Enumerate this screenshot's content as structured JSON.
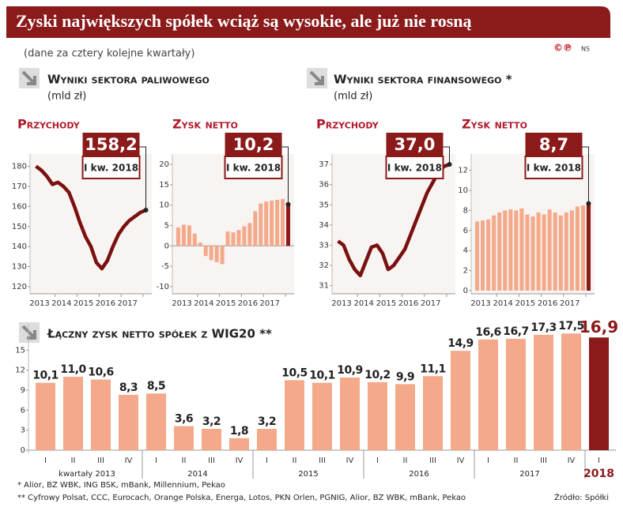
{
  "header": {
    "title": "Zyski największych spółek wciąż są wysokie, ale już nie rosną",
    "subtitle": "(dane za cztery kolejne kwartały)",
    "logo": "©℗",
    "author": "NS"
  },
  "sections": [
    {
      "title": "Wyniki sektora paliwowego",
      "unit": "(mld zł)"
    },
    {
      "title": "Wyniki sektora finansowego *",
      "unit": "(mld zł)"
    }
  ],
  "chart_data": [
    {
      "type": "line",
      "title": "Przychody",
      "color": "#7a1010",
      "categories": [
        "2013",
        null,
        null,
        null,
        "2014",
        null,
        null,
        null,
        "2015",
        null,
        null,
        null,
        "2016",
        null,
        null,
        null,
        "2017",
        null,
        null,
        null,
        null
      ],
      "values": [
        180,
        178,
        175,
        171,
        172,
        170,
        167,
        160,
        152,
        145,
        140,
        132,
        129,
        133,
        140,
        146,
        150,
        153,
        155,
        157,
        158.2
      ],
      "ylim": [
        118,
        183
      ],
      "yticks": [
        120,
        130,
        140,
        150,
        160,
        170,
        180
      ],
      "highlight": {
        "value": 158.2,
        "label": "158,2",
        "period": "I kw. 2018"
      }
    },
    {
      "type": "bar",
      "title": "Zysk netto",
      "color": "#f4a98a",
      "highlight_color": "#8b1a1a",
      "categories": [
        "2013",
        null,
        null,
        null,
        "2014",
        null,
        null,
        null,
        "2015",
        null,
        null,
        null,
        "2016",
        null,
        null,
        null,
        "2017",
        null,
        null,
        null,
        null
      ],
      "values": [
        4.5,
        5.2,
        5.0,
        3.0,
        0.8,
        -2.5,
        -3.5,
        -4.0,
        -4.5,
        3.5,
        3.3,
        3.9,
        4.8,
        5.6,
        8.5,
        10.4,
        10.9,
        11.1,
        11.3,
        11.5,
        10.2
      ],
      "ylim": [
        -11,
        21
      ],
      "yticks": [
        -10,
        -5,
        0,
        5,
        10,
        15,
        20
      ],
      "highlight": {
        "value": 10.2,
        "label": "10,2",
        "period": "I kw. 2018"
      }
    },
    {
      "type": "line",
      "title": "Przychody",
      "color": "#7a1010",
      "categories": [
        "2013",
        null,
        null,
        null,
        "2014",
        null,
        null,
        null,
        "2015",
        null,
        null,
        null,
        "2016",
        null,
        null,
        null,
        "2017",
        null,
        null,
        null,
        null
      ],
      "values": [
        33.2,
        33.0,
        32.3,
        31.8,
        31.5,
        32.2,
        32.9,
        33.0,
        32.6,
        31.8,
        32.0,
        32.4,
        32.8,
        33.5,
        34.2,
        34.9,
        35.6,
        36.1,
        36.6,
        36.9,
        37.0
      ],
      "ylim": [
        30.75,
        37.2
      ],
      "yticks": [
        31,
        32,
        33,
        34,
        35,
        36,
        37
      ],
      "highlight": {
        "value": 37.0,
        "label": "37,0",
        "period": "I kw. 2018"
      }
    },
    {
      "type": "bar",
      "title": "Zysk netto",
      "color": "#f4a98a",
      "highlight_color": "#8b1a1a",
      "categories": [
        "2013",
        null,
        null,
        null,
        "2014",
        null,
        null,
        null,
        "2015",
        null,
        null,
        null,
        "2016",
        null,
        null,
        null,
        "2017",
        null,
        null,
        null,
        null
      ],
      "values": [
        6.9,
        7.0,
        7.1,
        7.5,
        7.8,
        8.0,
        8.1,
        8.0,
        8.2,
        7.6,
        7.4,
        7.8,
        7.6,
        8.1,
        7.8,
        7.5,
        7.8,
        8.0,
        8.4,
        8.5,
        8.7
      ],
      "ylim": [
        0,
        13
      ],
      "yticks": [
        0,
        2,
        4,
        6,
        8,
        10,
        12
      ],
      "highlight": {
        "value": 8.7,
        "label": "8,7",
        "period": "I kw. 2018"
      }
    },
    {
      "type": "bar",
      "title": "Łączny zysk netto spółek z WIG20 **",
      "color": "#f4a98a",
      "highlight_color": "#8b1a1a",
      "categories": [
        "I",
        "II",
        "III",
        "IV",
        "I",
        "II",
        "III",
        "IV",
        "I",
        "II",
        "III",
        "IV",
        "I",
        "II",
        "III",
        "IV",
        "I",
        "II",
        "III",
        "IV",
        "I"
      ],
      "values": [
        10.1,
        11.0,
        10.6,
        8.3,
        8.5,
        3.6,
        3.2,
        1.8,
        3.2,
        10.5,
        10.1,
        10.9,
        10.2,
        9.9,
        11.1,
        14.9,
        16.6,
        16.7,
        17.3,
        17.5,
        16.9
      ],
      "value_labels": [
        "10,1",
        "11,0",
        "10,6",
        "8,3",
        "8,5",
        "3,6",
        "3,2",
        "1,8",
        "3,2",
        "10,5",
        "10,1",
        "10,9",
        "10,2",
        "9,9",
        "11,1",
        "14,9",
        "16,6",
        "16,7",
        "17,3",
        "17,5",
        "16,9"
      ],
      "year_labels": [
        "kwartały 2013",
        "2014",
        "2015",
        "2016",
        "2017",
        "2018"
      ],
      "ylim": [
        0,
        18
      ],
      "yticks": [
        0,
        3,
        6,
        9,
        12,
        15
      ]
    }
  ],
  "footnotes": [
    "* Alior, BZ WBK, ING BSK, mBank, Millennium, Pekao",
    "** Cyfrowy Polsat, CCC, Eurocach, Orange Polska,  Energa, Lotos, PKN Orlen, PGNIG, Alior, BZ WBK, mBank, Pekao"
  ],
  "source": "Źródło: Spółki"
}
